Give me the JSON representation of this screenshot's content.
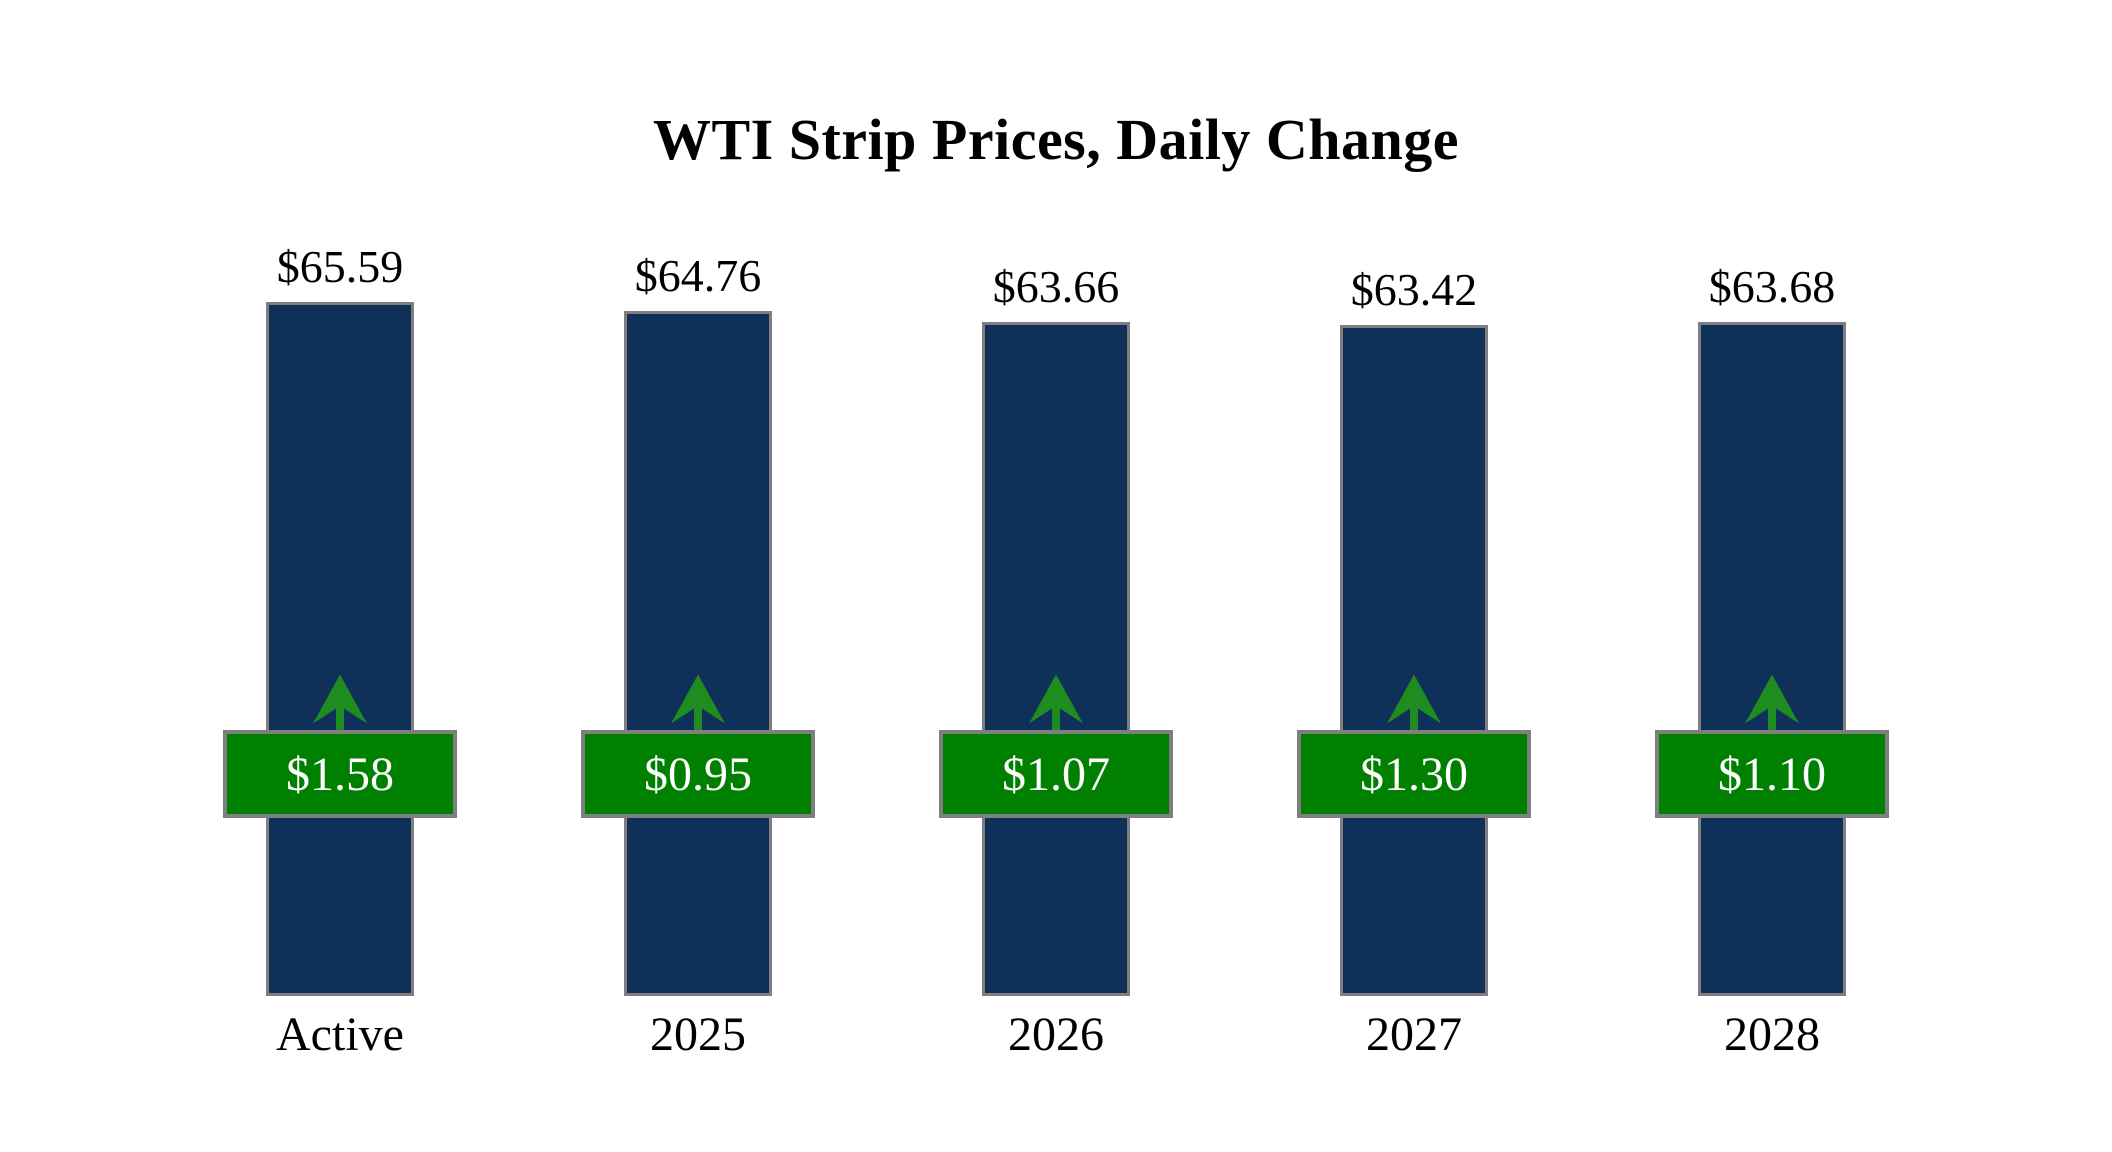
{
  "title": "WTI Strip Prices, Daily Change",
  "chart_data": {
    "type": "bar",
    "title": "WTI Strip Prices, Daily Change",
    "categories": [
      "Active",
      "2025",
      "2026",
      "2027",
      "2028"
    ],
    "series": [
      {
        "name": "strip_price",
        "values": [
          65.59,
          64.76,
          63.66,
          63.42,
          63.68
        ]
      },
      {
        "name": "daily_change",
        "values": [
          1.58,
          0.95,
          1.07,
          1.3,
          1.1
        ]
      }
    ],
    "price_labels": [
      "$65.59",
      "$64.76",
      "$63.66",
      "$63.42",
      "$63.68"
    ],
    "change_labels": [
      "$1.58",
      "$0.95",
      "$1.07",
      "$1.30",
      "$1.10"
    ],
    "change_direction": "up",
    "xlabel": "",
    "ylabel": "",
    "ylim": [
      0,
      70
    ],
    "grid": false,
    "legend": false
  },
  "icons": {
    "up_arrow": "up-arrow-icon"
  },
  "colors": {
    "background": "#ffffff",
    "text": "#000000",
    "bar-fill": "#0f3058",
    "bar-border": "#7f7f7f",
    "badge-fill": "#008000",
    "badge-border": "#7f7f7f",
    "badge-text": "#ffffff",
    "arrow": "#1e8c1e"
  }
}
